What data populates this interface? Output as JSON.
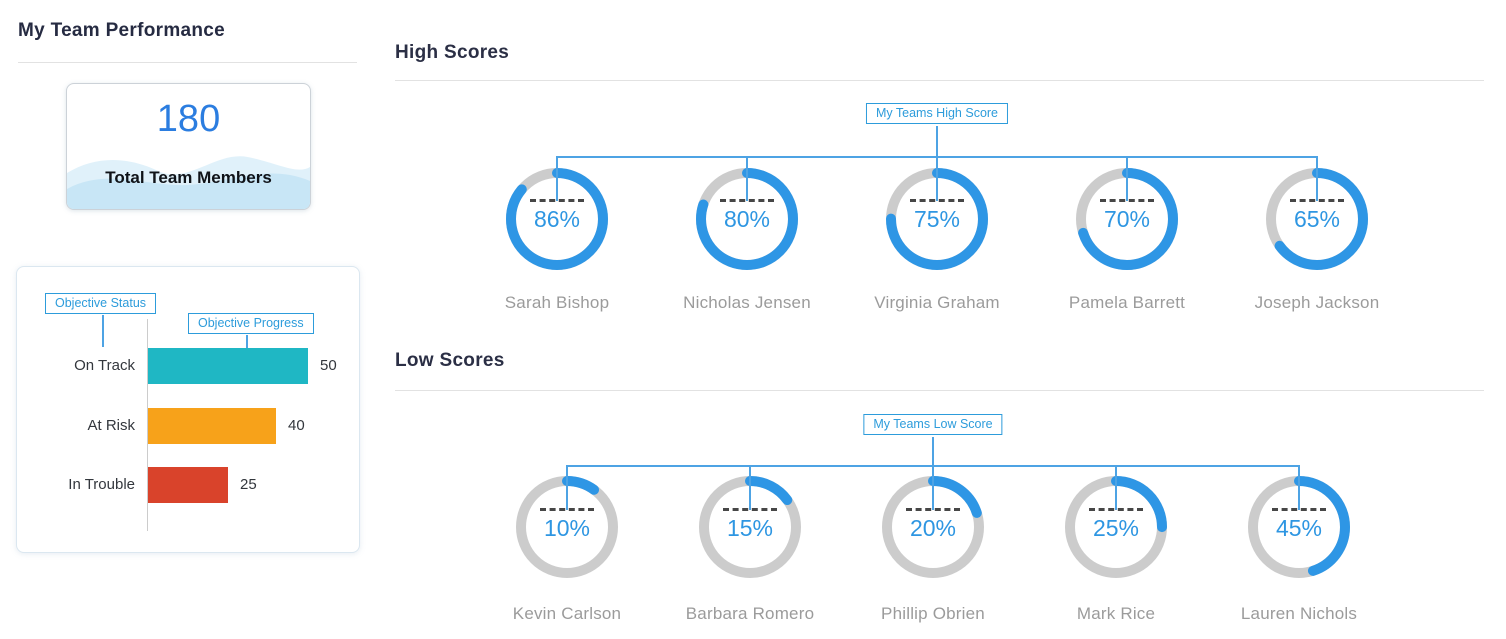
{
  "page": {
    "title": "My Team Performance"
  },
  "summary_card": {
    "value": "180",
    "label": "Total Team Members"
  },
  "colors": {
    "accent_blue": "#2E96E5",
    "callout_blue": "#2D9CDB",
    "donut_track_gray": "#CCCCCC",
    "teal": "#1FB7C4",
    "orange": "#F7A21A",
    "red": "#D9432B",
    "summary_value_blue": "#2B7DE0",
    "member_name_gray": "#9B9B9B",
    "heading_navy": "#262B42"
  },
  "chart_data": [
    {
      "type": "bar",
      "orientation": "horizontal",
      "categories": [
        "On Track",
        "At Risk",
        "In Trouble"
      ],
      "values": [
        50,
        40,
        25
      ],
      "bar_colors": [
        "#1FB7C4",
        "#F7A21A",
        "#D9432B"
      ],
      "annotations": [
        "Objective Status",
        "Objective Progress"
      ],
      "xlim": [
        0,
        50
      ],
      "grid": false,
      "value_labels": true
    },
    {
      "type": "donut-group",
      "title": "High Scores",
      "callout": "My Teams High Score",
      "unit": "%",
      "series": [
        {
          "name": "Sarah Bishop",
          "value": 86
        },
        {
          "name": "Nicholas Jensen",
          "value": 80
        },
        {
          "name": "Virginia Graham",
          "value": 75
        },
        {
          "name": "Pamela Barrett",
          "value": 70
        },
        {
          "name": "Joseph Jackson",
          "value": 65
        }
      ]
    },
    {
      "type": "donut-group",
      "title": "Low Scores",
      "callout": "My Teams Low Score",
      "unit": "%",
      "series": [
        {
          "name": "Kevin Carlson",
          "value": 10
        },
        {
          "name": "Barbara Romero",
          "value": 15
        },
        {
          "name": "Phillip Obrien",
          "value": 20
        },
        {
          "name": "Mark Rice",
          "value": 25
        },
        {
          "name": "Lauren Nichols",
          "value": 45
        }
      ]
    }
  ]
}
